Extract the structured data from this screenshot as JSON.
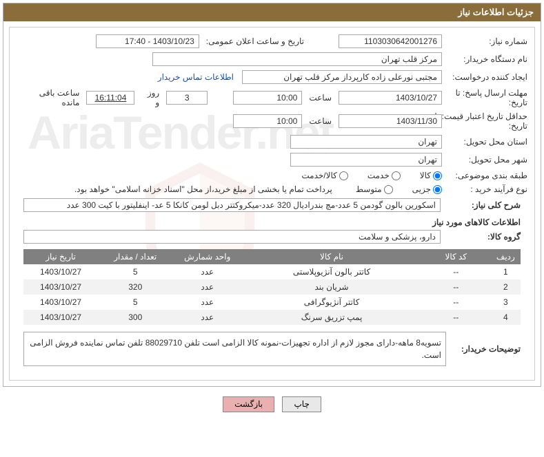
{
  "panel_title": "جزئیات اطلاعات نیاز",
  "watermark": "AriaTender.net",
  "labels": {
    "need_no": "شماره نیاز:",
    "announce_datetime": "تاریخ و ساعت اعلان عمومی:",
    "buyer_org": "نام دستگاه خریدار:",
    "requester": "ایجاد کننده درخواست:",
    "contact_link": "اطلاعات تماس خریدار",
    "reply_deadline": "مهلت ارسال پاسخ: تا تاریخ:",
    "hour": "ساعت",
    "days_and": "روز و",
    "remaining": "ساعت باقی مانده",
    "price_validity": "حداقل تاریخ اعتبار قیمت: تا تاریخ:",
    "delivery_province": "استان محل تحویل:",
    "delivery_city": "شهر محل تحویل:",
    "subject_class": "طبقه بندی موضوعی:",
    "purchase_type": "نوع فرآیند خرید :",
    "radio_goods": "کالا",
    "radio_service": "خدمت",
    "radio_goods_service": "کالا/خدمت",
    "radio_partial": "جزیی",
    "radio_medium": "متوسط",
    "payment_note": "پرداخت تمام یا بخشی از مبلغ خرید،از محل \"اسناد خزانه اسلامی\" خواهد بود.",
    "general_desc": "شرح کلی نیاز:",
    "goods_info": "اطلاعات کالاهای مورد نیاز",
    "goods_group": "گروه کالا:",
    "buyer_notes": "توضیحات خریدار:"
  },
  "values": {
    "need_no": "1103030642001276",
    "announce_datetime": "1403/10/23 - 17:40",
    "buyer_org": "مرکز قلب تهران",
    "requester": "مجتبی نورعلی زاده کارپرداز مرکز قلب تهران",
    "reply_date": "1403/10/27",
    "reply_hour": "10:00",
    "remaining_days": "3",
    "remaining_time": "16:11:04",
    "price_validity_date": "1403/11/30",
    "price_validity_hour": "10:00",
    "delivery_province": "تهران",
    "delivery_city": "تهران",
    "general_desc": "اسکورین بالون گودمن 5 عدد-مچ بندرادیال 320 عدد-میکروکتتر دبل لومن کانکا 5 عد- اینفلیتور با کیت 300 عدد",
    "goods_group": "دارو، پزشکی و سلامت",
    "buyer_notes": "تسویه8 ماهه-دارای مجوز لازم از اداره تجهیزات-نمونه کالا الزامی است تلفن 88029710 تلفن تماس نماینده فروش الزامی است."
  },
  "table": {
    "headers": [
      "ردیف",
      "کد کالا",
      "نام کالا",
      "واحد شمارش",
      "تعداد / مقدار",
      "تاریخ نیاز"
    ],
    "col_widths": [
      "6%",
      "14%",
      "36%",
      "14%",
      "15%",
      "15%"
    ],
    "rows": [
      [
        "1",
        "--",
        "کاتتر بالون آنژیوپلاستی",
        "عدد",
        "5",
        "1403/10/27"
      ],
      [
        "2",
        "--",
        "شریان بند",
        "عدد",
        "320",
        "1403/10/27"
      ],
      [
        "3",
        "--",
        "کاتتر آنژیوگرافی",
        "عدد",
        "5",
        "1403/10/27"
      ],
      [
        "4",
        "--",
        "پمپ تزریق سرنگ",
        "عدد",
        "300",
        "1403/10/27"
      ]
    ]
  },
  "buttons": {
    "print": "چاپ",
    "back": "بازگشت"
  },
  "colors": {
    "header_bg": "#8a6d3b",
    "header_fg": "#ffffff",
    "th_bg": "#808080",
    "row_even": "#f2f2f2",
    "row_odd": "#ffffff",
    "link": "#1a4fad",
    "border": "#a8a8a8",
    "btn_back": "#e8b0b0"
  }
}
